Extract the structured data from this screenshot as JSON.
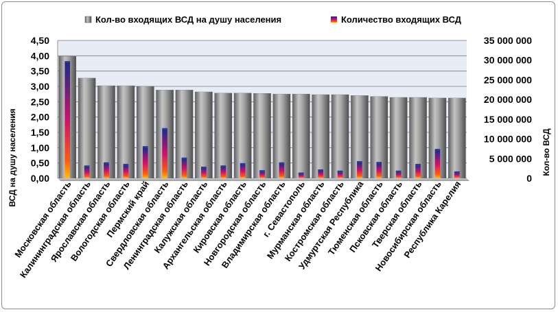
{
  "chart_data": {
    "type": "bar",
    "categories": [
      "Московская область",
      "Калининградская область",
      "Ярославская область",
      "Вологодская область",
      "Пермский край",
      "Свердловская область",
      "Ленинградская область",
      "Калужская область",
      "Архангельская область",
      "Кировская область",
      "Новгородская область",
      "Владимирская область",
      "г. Севастополь",
      "Мурманская область",
      "Костромская область",
      "Удмуртская Республика",
      "Тюменская область",
      "Псковская область",
      "Тверская область",
      "Новосибирская область",
      "Республика Карелия"
    ],
    "series": [
      {
        "name": "Кол-во входящих ВСД на душу населения",
        "axis": "left",
        "values": [
          3.98,
          3.27,
          3.02,
          3.02,
          3.0,
          2.88,
          2.88,
          2.82,
          2.78,
          2.78,
          2.77,
          2.75,
          2.75,
          2.73,
          2.73,
          2.7,
          2.67,
          2.64,
          2.64,
          2.62,
          2.62
        ]
      },
      {
        "name": "Количество входящих ВСД",
        "axis": "right",
        "values": [
          29500000,
          3000000,
          3800000,
          3400000,
          7900000,
          12500000,
          5000000,
          2700000,
          3000000,
          3600000,
          1800000,
          3800000,
          1200000,
          2000000,
          1700000,
          4100000,
          3900000,
          1700000,
          3400000,
          7200000,
          1500000
        ]
      }
    ],
    "ylabel": "ВСД на душу населения",
    "y2label": "Кол-во ВСД",
    "ylim": [
      0,
      4.5
    ],
    "y2lim": [
      0,
      35000000
    ],
    "yticks": [
      "0,00",
      "0,50",
      "1,00",
      "1,50",
      "2,00",
      "2,50",
      "3,00",
      "3,50",
      "4,00",
      "4,50"
    ],
    "y2ticks": [
      "0",
      "5 000 000",
      "10 000 000",
      "15 000 000",
      "20 000 000",
      "25 000 000",
      "30 000 000",
      "35 000 000"
    ],
    "legend_position": "top",
    "grid": true,
    "colors": {
      "bar_gray": "#8a8a8a",
      "bar_inner_top": "#1a2a8c",
      "bar_inner_mid": "#d0106a",
      "bar_inner_bottom": "#ffb000",
      "plot_bg": "#e8ecf6"
    }
  }
}
